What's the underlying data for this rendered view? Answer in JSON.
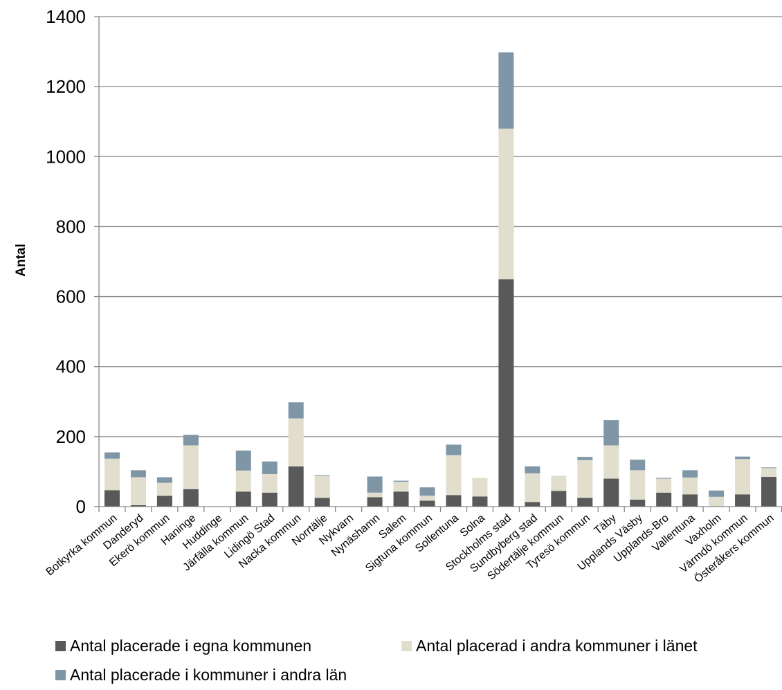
{
  "chart_data": {
    "type": "bar",
    "stacked": true,
    "ylabel": "Antal",
    "xlabel": "",
    "ylim": [
      0,
      1400
    ],
    "yticks": [
      0,
      200,
      400,
      600,
      800,
      1000,
      1200,
      1400
    ],
    "grid": true,
    "legend_position": "bottom",
    "categories": [
      "Botkyrka kommun",
      "Danderyd",
      "Ekerö kommun",
      "Haninge",
      "Huddinge",
      "Järfälla kommun",
      "Lidingö Stad",
      "Nacka kommun",
      "Norrtälje",
      "Nykvarn",
      "Nynäshamn",
      "Salem",
      "Sigtuna kommun",
      "Sollentuna",
      "Solna",
      "Stockholms stad",
      "Sundbyberg stad",
      "Södertälje kommun",
      "Tyresö kommun",
      "Täby",
      "Upplands Väsby",
      "Upplands-Bro",
      "Vallentuna",
      "Vaxholm",
      "Värmdö kommun",
      "Österåkers kommun"
    ],
    "series": [
      {
        "name": "Antal placerade i egna kommunen",
        "color": "#595959",
        "values": [
          47,
          4,
          31,
          50,
          0,
          43,
          40,
          115,
          25,
          0,
          27,
          43,
          17,
          33,
          29,
          650,
          13,
          45,
          25,
          80,
          20,
          40,
          35,
          0,
          35,
          85
        ]
      },
      {
        "name": "Antal placerad i andra kommuner i länet",
        "color": "#e2dece",
        "values": [
          90,
          80,
          37,
          125,
          0,
          60,
          53,
          137,
          63,
          0,
          13,
          28,
          14,
          114,
          53,
          430,
          82,
          43,
          108,
          95,
          84,
          40,
          48,
          28,
          101,
          25
        ]
      },
      {
        "name": "Antal placerade i kommuner i andra län",
        "color": "#7f96a6",
        "values": [
          18,
          20,
          16,
          30,
          0,
          57,
          36,
          46,
          2,
          0,
          46,
          3,
          24,
          30,
          0,
          218,
          20,
          0,
          9,
          72,
          30,
          2,
          21,
          18,
          7,
          2
        ]
      }
    ]
  }
}
